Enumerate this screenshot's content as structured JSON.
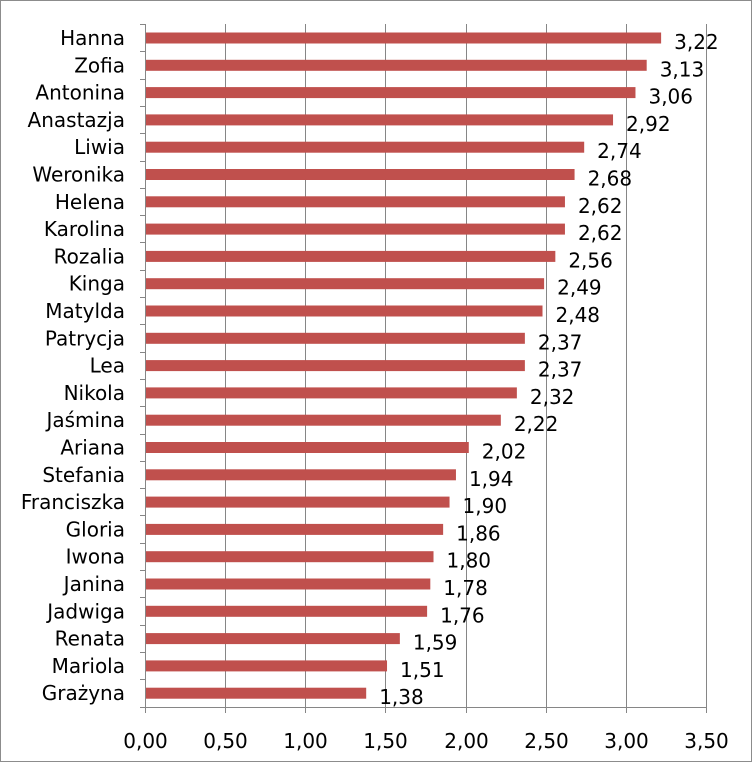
{
  "chart_data": {
    "type": "bar",
    "orientation": "horizontal",
    "title": "",
    "xlabel": "",
    "ylabel": "",
    "categories": [
      "Hanna",
      "Zofia",
      "Antonina",
      "Anastazja",
      "Liwia",
      "Weronika",
      "Helena",
      "Karolina",
      "Rozalia",
      "Kinga",
      "Matylda",
      "Patrycja",
      "Lea",
      "Nikola",
      "Jaśmina",
      "Ariana",
      "Stefania",
      "Franciszka",
      "Gloria",
      "Iwona",
      "Janina",
      "Jadwiga",
      "Renata",
      "Mariola",
      "Grażyna"
    ],
    "values": [
      3.22,
      3.13,
      3.06,
      2.92,
      2.74,
      2.68,
      2.62,
      2.62,
      2.56,
      2.49,
      2.48,
      2.37,
      2.37,
      2.32,
      2.22,
      2.02,
      1.94,
      1.9,
      1.86,
      1.8,
      1.78,
      1.76,
      1.59,
      1.51,
      1.38
    ],
    "value_labels": [
      "3,22",
      "3,13",
      "3,06",
      "2,92",
      "2,74",
      "2,68",
      "2,62",
      "2,62",
      "2,56",
      "2,49",
      "2,48",
      "2,37",
      "2,37",
      "2,32",
      "2,22",
      "2,02",
      "1,94",
      "1,90",
      "1,86",
      "1,80",
      "1,78",
      "1,76",
      "1,59",
      "1,51",
      "1,38"
    ],
    "xlim": [
      0,
      3.5
    ],
    "xticks": [
      0,
      0.5,
      1,
      1.5,
      2,
      2.5,
      3,
      3.5
    ],
    "xtick_labels": [
      "0,00",
      "0,50",
      "1,00",
      "1,50",
      "2,00",
      "2,50",
      "3,00",
      "3,50"
    ],
    "grid": "vertical",
    "bar_color": "#c0504d",
    "grid_color": "#868686"
  }
}
